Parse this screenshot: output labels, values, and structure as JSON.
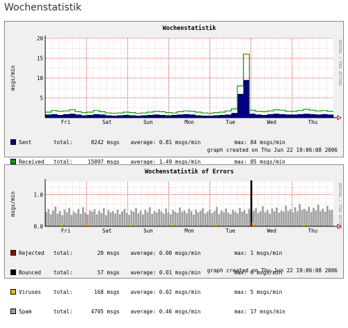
{
  "page": {
    "heading": "Wochenstatistik"
  },
  "colors": {
    "background": "#f0f0f0",
    "plot_background": "#ffffff",
    "grid_minor": "#e0b0b0",
    "grid_major": "#d03030",
    "sent": "#000080",
    "received": "#00a000",
    "rejected": "#a00000",
    "bounced": "#000000",
    "viruses": "#e0c000",
    "spam": "#a0a0a0"
  },
  "chart_data": [
    {
      "type": "area",
      "title": "Wochenstatistik",
      "ylabel": "msgs/min",
      "ylim": [
        0,
        20
      ],
      "yticks": [
        5,
        10,
        15,
        20
      ],
      "x_ticks": [
        "Fri",
        "Sat",
        "Sun",
        "Mon",
        "Tue",
        "Wed",
        "Thu"
      ],
      "side_text": "RRDTOOL / TOBI OETIKER",
      "footer": "graph created on Thu Jun 22 19:06:08 2006",
      "series": [
        {
          "name": "Sent",
          "color": "#000080",
          "total": "8242",
          "total_unit": "msgs",
          "average": "0.81 msgs/min",
          "max": "84 msgs/min",
          "values": [
            0.8,
            0.9,
            0.7,
            0.9,
            1.0,
            0.8,
            0.6,
            0.7,
            0.9,
            0.8,
            0.6,
            0.5,
            0.6,
            0.7,
            0.6,
            0.5,
            0.6,
            0.7,
            0.8,
            0.7,
            0.6,
            0.7,
            0.8,
            0.9,
            0.8,
            0.6,
            0.5,
            0.5,
            0.6,
            0.7,
            0.8,
            1.2,
            6.0,
            9.5,
            1.0,
            0.8,
            0.7,
            0.9,
            1.0,
            0.9,
            0.8,
            0.8,
            0.9,
            1.0,
            0.9,
            0.8,
            0.9,
            0.8
          ]
        },
        {
          "name": "Received",
          "color": "#00a000",
          "total": "15097",
          "total_unit": "msgs",
          "average": "1.49 msgs/min",
          "max": "85 msgs/min",
          "values": [
            1.4,
            1.8,
            1.6,
            1.7,
            2.0,
            1.5,
            1.3,
            1.4,
            1.8,
            1.5,
            1.2,
            1.1,
            1.2,
            1.4,
            1.3,
            1.1,
            1.2,
            1.4,
            1.6,
            1.5,
            1.3,
            1.2,
            1.5,
            1.7,
            1.6,
            1.4,
            1.2,
            1.1,
            1.3,
            1.4,
            1.7,
            2.2,
            8.0,
            16.0,
            1.9,
            1.6,
            1.5,
            1.7,
            2.0,
            1.9,
            1.6,
            1.6,
            1.8,
            2.1,
            1.9,
            1.7,
            1.8,
            1.6
          ]
        }
      ]
    },
    {
      "type": "bar",
      "title": "Wochenstatistik of Errors",
      "ylabel": "msgs/min",
      "ylim": [
        0,
        1.4
      ],
      "yticks": [
        0.0,
        1.0
      ],
      "ytick_labels": [
        "0.0",
        "1.0"
      ],
      "x_ticks": [
        "Fri",
        "Sat",
        "Sun",
        "Mon",
        "Tue",
        "Wed",
        "Thu"
      ],
      "side_text": "RRDTOOL / TOBI OETIKER",
      "footer": "graph created on Thu Jun 22 19:06:08 2006",
      "series": [
        {
          "name": "Rejected",
          "color": "#a00000",
          "total": "20",
          "total_unit": "msgs",
          "average": "0.00 msgs/min",
          "max": "1 msgs/min"
        },
        {
          "name": "Bounced",
          "color": "#000000",
          "total": "57",
          "total_unit": "msgs",
          "average": "0.01 msgs/min",
          "max": "6 msgs/min"
        },
        {
          "name": "Viruses",
          "color": "#e0c000",
          "total": "168",
          "total_unit": "msgs",
          "average": "0.02 msgs/min",
          "max": "5 msgs/min"
        },
        {
          "name": "Spam",
          "color": "#a0a0a0",
          "total": "4705",
          "total_unit": "msgs",
          "average": "0.46 msgs/min",
          "max": "17 msgs/min",
          "values": [
            0.45,
            0.55,
            0.38,
            0.5,
            0.62,
            0.4,
            0.48,
            0.35,
            0.52,
            0.44,
            0.58,
            0.36,
            0.47,
            0.41,
            0.55,
            0.39,
            0.6,
            0.43,
            0.37,
            0.5,
            0.46,
            0.54,
            0.38,
            0.49,
            0.42,
            0.57,
            0.35,
            0.51,
            0.44,
            0.48,
            0.4,
            0.53,
            0.38,
            0.47,
            0.55,
            0.42,
            0.36,
            0.5,
            0.46,
            0.58,
            0.41,
            0.49,
            0.37,
            0.52,
            0.45,
            0.6,
            0.39,
            0.48,
            0.43,
            0.54,
            0.47,
            0.4,
            0.56,
            0.44,
            0.38,
            0.51,
            0.46,
            0.42,
            0.59,
            0.45,
            0.5,
            0.41,
            0.55,
            0.48,
            0.37,
            0.52,
            0.44,
            0.49,
            0.57,
            0.4,
            0.46,
            0.53,
            0.42,
            0.48,
            0.61,
            0.39,
            0.5,
            0.45,
            0.56,
            0.43,
            0.38,
            0.52,
            0.47,
            0.41,
            0.58,
            0.46,
            0.51,
            0.4,
            0.55,
            0.44,
            0.49,
            0.57,
            0.42,
            0.48,
            0.63,
            0.45,
            0.52,
            0.4,
            0.56,
            0.47,
            0.59,
            0.43,
            0.5,
            0.46,
            0.65,
            0.48,
            0.54,
            0.44,
            0.6,
            0.47,
            0.7,
            0.52,
            0.55,
            0.49,
            0.62,
            0.45,
            0.58,
            0.5,
            0.68,
            0.48,
            0.56,
            0.46,
            0.64,
            0.51,
            0.52
          ]
        }
      ]
    }
  ]
}
